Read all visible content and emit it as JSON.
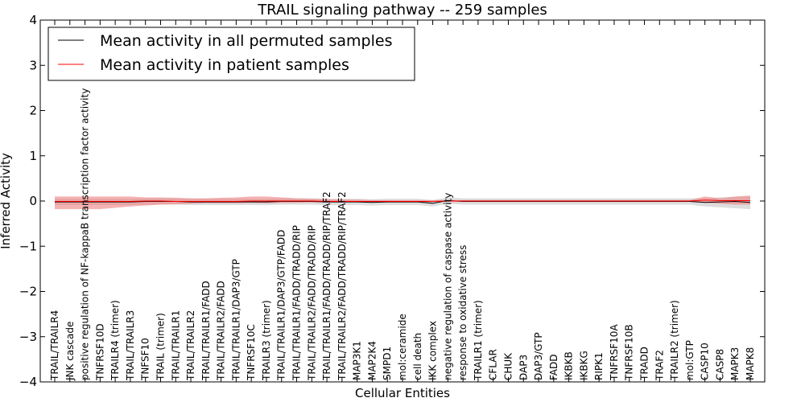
{
  "chart_data": {
    "type": "line",
    "title": "TRAIL signaling pathway -- 259 samples",
    "xlabel": "Cellular Entities",
    "ylabel": "Inferred Activity",
    "ylim": [
      -4,
      4
    ],
    "yticks": [
      4,
      3,
      2,
      1,
      0,
      -1,
      -2,
      -3,
      -4
    ],
    "ytick_labels": [
      "4",
      "3",
      "2",
      "1",
      "0",
      "−1",
      "−2",
      "−3",
      "−4"
    ],
    "grid": false,
    "legend_position": "top-left",
    "categories": [
      "TRAIL/TRAILR4",
      "JNK cascade",
      "positive regulation of NF-kappaB transcription factor activity",
      "TNFRSF10D",
      "TRAILR4 (trimer)",
      "TRAIL/TRAILR3",
      "TNFSF10",
      "TRAIL (trimer)",
      "TRAIL/TRAILR1",
      "TRAIL/TRAILR2",
      "TRAIL/TRAILR1/FADD",
      "TRAIL/TRAILR2/FADD",
      "TRAIL/TRAILR1/DAP3/GTP",
      "TNFRSF10C",
      "TRAILR3 (trimer)",
      "TRAIL/TRAILR1/DAP3/GTP/FADD",
      "TRAIL/TRAILR1/FADD/TRADD/RIP",
      "TRAIL/TRAILR2/FADD/TRADD/RIP",
      "TRAIL/TRAILR1/FADD/TRADD/RIP/TRAF2",
      "TRAIL/TRAILR2/FADD/TRADD/RIP/TRAF2",
      "MAP3K1",
      "MAP2K4",
      "SMPD1",
      "mol:ceramide",
      "cell death",
      "IKK complex",
      "negative regulation of caspase activity",
      "response to oxidative stress",
      "TRAILR1 (trimer)",
      "CFLAR",
      "CHUK",
      "DAP3",
      "DAP3/GTP",
      "FADD",
      "IKBKB",
      "IKBKG",
      "RIPK1",
      "TNFRSF10A",
      "TNFRSF10B",
      "TRADD",
      "TRAF2",
      "TRAILR2 (trimer)",
      "mol:GTP",
      "CASP10",
      "CASP8",
      "MAPK3",
      "MAPK8"
    ],
    "series": [
      {
        "name": "Mean activity in all permuted samples",
        "color": "#000000",
        "values": [
          -0.02,
          -0.02,
          -0.02,
          -0.02,
          -0.02,
          -0.02,
          -0.01,
          -0.01,
          -0.01,
          -0.02,
          -0.02,
          -0.02,
          -0.02,
          -0.02,
          -0.02,
          -0.01,
          -0.01,
          -0.01,
          -0.02,
          -0.02,
          -0.02,
          -0.03,
          -0.02,
          -0.02,
          -0.02,
          -0.05,
          0.01,
          -0.01,
          -0.01,
          -0.01,
          -0.01,
          -0.01,
          -0.01,
          -0.01,
          -0.01,
          -0.01,
          -0.01,
          -0.01,
          -0.01,
          -0.01,
          -0.01,
          -0.01,
          -0.01,
          -0.03,
          -0.02,
          -0.01,
          -0.03
        ],
        "band_low": [
          -0.09,
          -0.09,
          -0.09,
          -0.09,
          -0.09,
          -0.09,
          -0.08,
          -0.08,
          -0.08,
          -0.09,
          -0.09,
          -0.09,
          -0.09,
          -0.09,
          -0.09,
          -0.08,
          -0.08,
          -0.08,
          -0.09,
          -0.09,
          -0.09,
          -0.1,
          -0.09,
          -0.09,
          -0.09,
          -0.12,
          -0.06,
          -0.08,
          -0.08,
          -0.08,
          -0.08,
          -0.08,
          -0.08,
          -0.08,
          -0.08,
          -0.08,
          -0.08,
          -0.08,
          -0.08,
          -0.08,
          -0.08,
          -0.08,
          -0.08,
          -0.12,
          -0.14,
          -0.16,
          -0.18
        ],
        "band_high": [
          0.05,
          0.05,
          0.05,
          0.05,
          0.05,
          0.05,
          0.06,
          0.06,
          0.06,
          0.05,
          0.05,
          0.05,
          0.05,
          0.05,
          0.05,
          0.06,
          0.06,
          0.06,
          0.05,
          0.05,
          0.05,
          0.04,
          0.05,
          0.05,
          0.05,
          0.02,
          0.08,
          0.06,
          0.06,
          0.06,
          0.06,
          0.06,
          0.06,
          0.06,
          0.06,
          0.06,
          0.06,
          0.06,
          0.06,
          0.06,
          0.06,
          0.06,
          0.06,
          0.06,
          0.08,
          0.09,
          0.1
        ],
        "band_color": "#bbbbbb"
      },
      {
        "name": "Mean activity in patient samples",
        "color": "#ff0000",
        "values": [
          -0.01,
          -0.01,
          -0.01,
          -0.01,
          -0.01,
          -0.01,
          0.0,
          0.0,
          -0.01,
          -0.01,
          -0.01,
          -0.01,
          -0.01,
          0.0,
          0.0,
          0.0,
          0.0,
          0.0,
          -0.01,
          -0.01,
          -0.01,
          -0.01,
          -0.01,
          -0.01,
          -0.01,
          -0.01,
          0.0,
          0.0,
          0.0,
          0.0,
          0.0,
          0.0,
          0.0,
          0.0,
          0.0,
          0.0,
          0.0,
          0.0,
          0.0,
          0.0,
          0.0,
          0.0,
          0.0,
          0.02,
          0.01,
          0.01,
          0.01
        ],
        "band_low": [
          -0.18,
          -0.18,
          -0.18,
          -0.18,
          -0.15,
          -0.12,
          -0.1,
          -0.08,
          -0.07,
          -0.06,
          -0.05,
          -0.05,
          -0.05,
          -0.04,
          -0.05,
          -0.04,
          -0.04,
          -0.03,
          -0.03,
          -0.03,
          -0.03,
          -0.03,
          -0.03,
          -0.03,
          -0.03,
          -0.02,
          -0.02,
          -0.02,
          -0.02,
          -0.02,
          -0.02,
          -0.02,
          -0.02,
          -0.02,
          -0.02,
          -0.02,
          -0.02,
          -0.02,
          -0.02,
          -0.02,
          -0.02,
          -0.02,
          -0.02,
          -0.04,
          -0.06,
          -0.08,
          -0.08
        ],
        "band_high": [
          0.1,
          0.1,
          0.1,
          0.1,
          0.1,
          0.1,
          0.08,
          0.08,
          0.07,
          0.06,
          0.06,
          0.07,
          0.08,
          0.1,
          0.1,
          0.08,
          0.06,
          0.05,
          0.04,
          0.03,
          0.03,
          0.02,
          0.02,
          0.02,
          0.02,
          0.02,
          0.02,
          0.02,
          0.02,
          0.02,
          0.02,
          0.02,
          0.02,
          0.02,
          0.02,
          0.02,
          0.02,
          0.02,
          0.02,
          0.02,
          0.02,
          0.02,
          0.02,
          0.1,
          0.06,
          0.1,
          0.12
        ],
        "band_color": "#f08080"
      }
    ]
  }
}
